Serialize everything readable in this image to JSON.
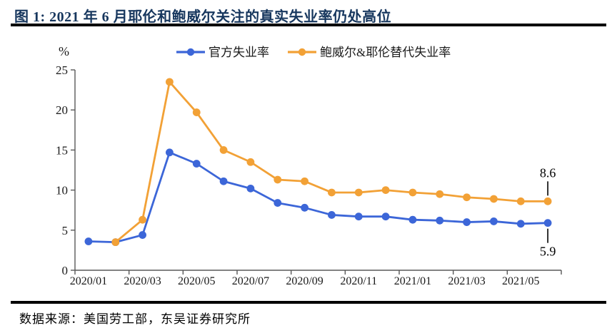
{
  "header": {
    "title": "图 1:  2021 年 6 月耶伦和鲍威尔关注的真实失业率仍处高位"
  },
  "chart_data": {
    "type": "line",
    "title": "",
    "xlabel": "",
    "ylabel": "%",
    "ylim": [
      0,
      25
    ],
    "yticks": [
      0,
      5,
      10,
      15,
      20,
      25
    ],
    "grid": false,
    "legend_position": "top",
    "x": [
      "2020/01",
      "2020/02",
      "2020/03",
      "2020/04",
      "2020/05",
      "2020/06",
      "2020/07",
      "2020/08",
      "2020/09",
      "2020/10",
      "2020/11",
      "2020/12",
      "2021/01",
      "2021/02",
      "2021/03",
      "2021/04",
      "2021/05",
      "2021/06"
    ],
    "x_label_every": 2,
    "series": [
      {
        "name": "官方失业率",
        "color": "#3c66d8",
        "values": [
          3.6,
          3.5,
          4.4,
          14.7,
          13.3,
          11.1,
          10.2,
          8.4,
          7.8,
          6.9,
          6.7,
          6.7,
          6.3,
          6.2,
          6.0,
          6.1,
          5.8,
          5.9
        ]
      },
      {
        "name": "鲍威尔&耶伦替代失业率",
        "color": "#f2a136",
        "values": [
          null,
          3.5,
          6.3,
          23.5,
          19.7,
          15.0,
          13.5,
          11.3,
          11.1,
          9.7,
          9.7,
          10.0,
          9.7,
          9.5,
          9.1,
          8.9,
          8.6,
          8.6
        ]
      }
    ],
    "annotations": [
      {
        "text": "8.6",
        "series": 1,
        "index": 17,
        "position": "above"
      },
      {
        "text": "5.9",
        "series": 0,
        "index": 17,
        "position": "below"
      }
    ]
  },
  "footer": {
    "source": "数据来源：美国劳工部，东吴证券研究所"
  },
  "colors": {
    "title": "#17375e",
    "axis": "#595959",
    "tick_text": "#1a1a1a",
    "annotation_text": "#000000",
    "rule": "#000000"
  }
}
